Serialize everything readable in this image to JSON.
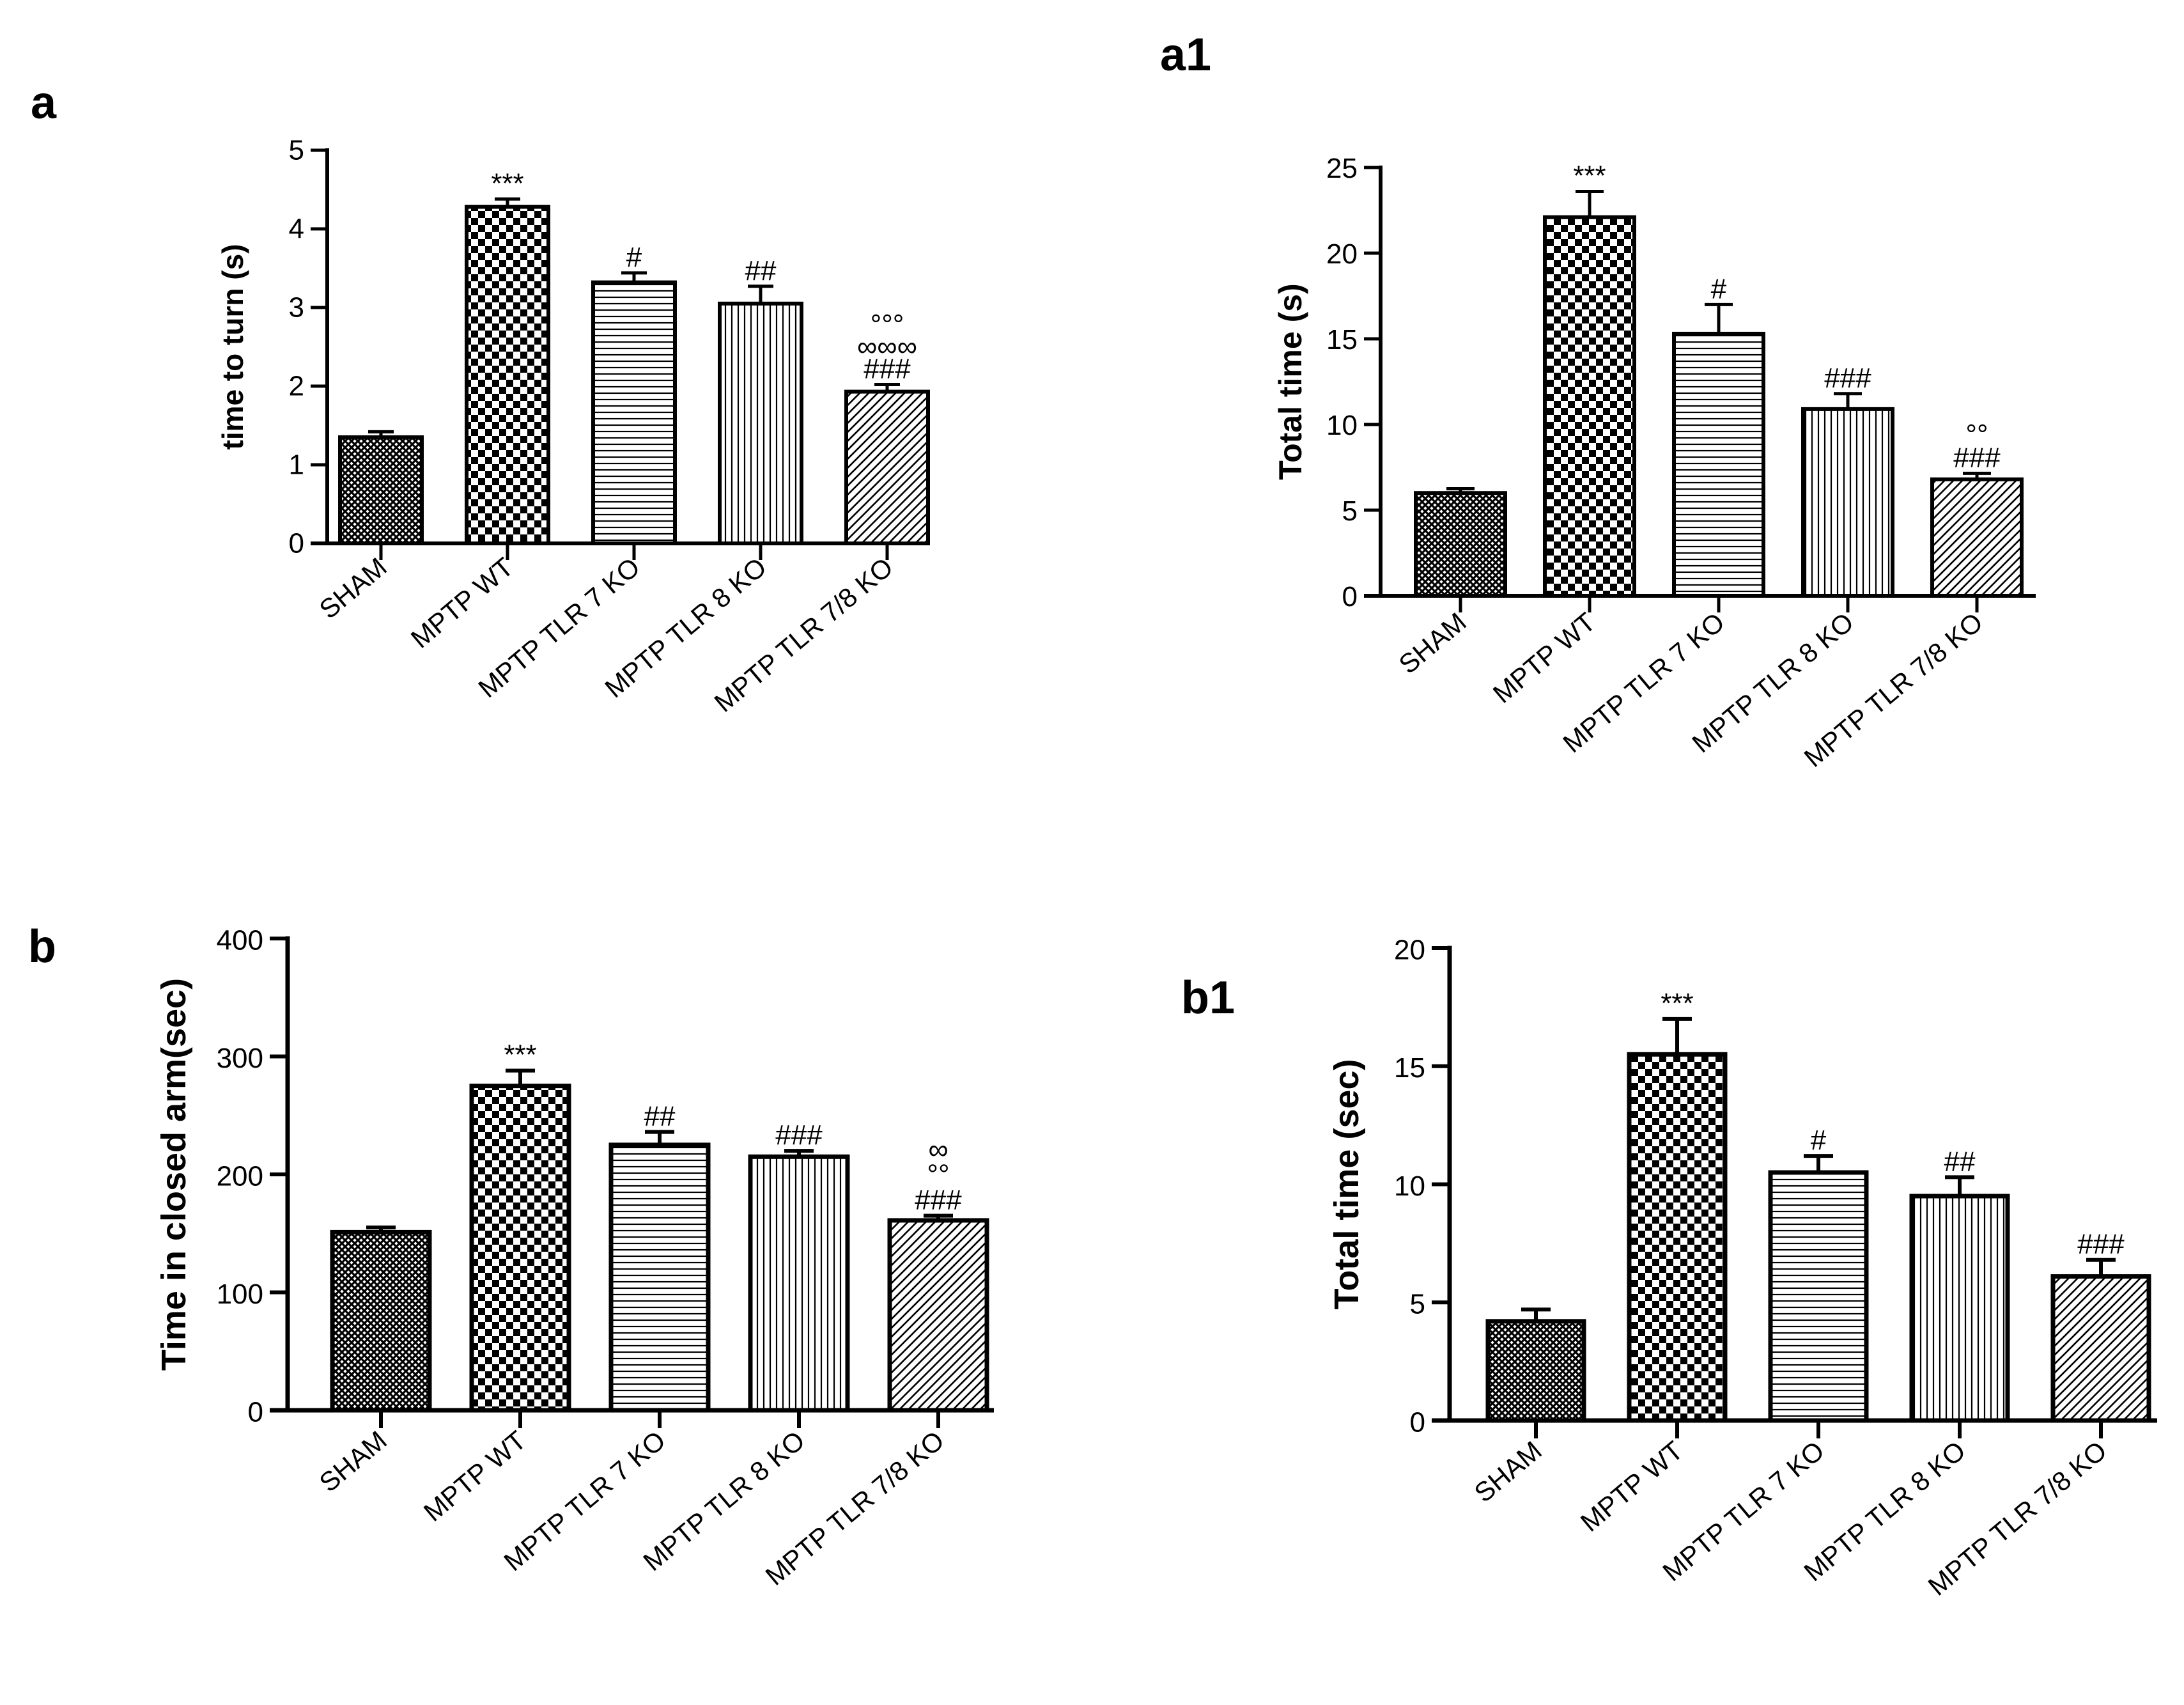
{
  "chart_data": [
    {
      "id": "a",
      "panel_label": "a",
      "type": "bar",
      "title": "",
      "xlabel": "",
      "ylabel": "time to turn (s)",
      "ylim": [
        0,
        5
      ],
      "yticks": [
        0,
        1,
        2,
        3,
        4,
        5
      ],
      "categories": [
        "SHAM",
        "MPTP WT",
        "MPTP TLR 7 KO",
        "MPTP TLR 8 KO",
        "MPTP TLR 7/8  KO"
      ],
      "values": [
        1.35,
        4.28,
        3.32,
        3.05,
        1.93
      ],
      "errors": [
        0.07,
        0.1,
        0.12,
        0.22,
        0.09
      ],
      "patterns": [
        "crosshatch",
        "checker",
        "hlines",
        "vlines",
        "diagonal"
      ],
      "significance": [
        [],
        [
          "***"
        ],
        [
          "#"
        ],
        [
          "##"
        ],
        [
          "°°°",
          "∞∞∞",
          "###"
        ]
      ]
    },
    {
      "id": "a1",
      "panel_label": "a1",
      "type": "bar",
      "title": "",
      "xlabel": "",
      "ylabel": "Total time (s)",
      "ylim": [
        0,
        25
      ],
      "yticks": [
        0,
        5,
        10,
        15,
        20,
        25
      ],
      "categories": [
        "SHAM",
        "MPTP WT",
        "MPTP TLR 7 KO",
        "MPTP TLR 8 KO",
        "MPTP TLR 7/8  KO"
      ],
      "values": [
        6.0,
        22.1,
        15.3,
        10.9,
        6.8
      ],
      "errors": [
        0.25,
        1.5,
        1.7,
        0.9,
        0.35
      ],
      "patterns": [
        "crosshatch",
        "checker",
        "hlines",
        "vlines",
        "diagonal"
      ],
      "significance": [
        [],
        [
          "***"
        ],
        [
          "#"
        ],
        [
          "###"
        ],
        [
          "°°",
          "###"
        ]
      ]
    },
    {
      "id": "b",
      "panel_label": "b",
      "type": "bar",
      "title": "",
      "xlabel": "",
      "ylabel": "Time in closed arm(sec)",
      "ylim": [
        0,
        400
      ],
      "yticks": [
        0,
        100,
        200,
        300,
        400
      ],
      "categories": [
        "SHAM",
        "MPTP WT",
        "MPTP TLR 7 KO",
        "MPTP TLR 8 KO",
        "MPTP TLR 7/8 KO"
      ],
      "values": [
        151,
        275,
        225,
        215,
        161
      ],
      "errors": [
        4,
        13,
        11,
        5,
        4
      ],
      "patterns": [
        "crosshatch",
        "checker",
        "hlines",
        "vlines",
        "diagonal"
      ],
      "significance": [
        [],
        [
          "***"
        ],
        [
          "##"
        ],
        [
          "###"
        ],
        [
          "∞",
          "°°",
          "###"
        ]
      ]
    },
    {
      "id": "b1",
      "panel_label": "b1",
      "type": "bar",
      "title": "",
      "xlabel": "",
      "ylabel": "Total time (sec)",
      "ylim": [
        0,
        20
      ],
      "yticks": [
        0,
        5,
        10,
        15,
        20
      ],
      "categories": [
        "SHAM",
        "MPTP WT",
        "MPTP TLR 7 KO",
        "MPTP TLR 8 KO",
        "MPTP TLR 7/8 KO"
      ],
      "values": [
        4.2,
        15.5,
        10.5,
        9.5,
        6.1
      ],
      "errors": [
        0.5,
        1.5,
        0.7,
        0.8,
        0.7
      ],
      "patterns": [
        "crosshatch",
        "checker",
        "hlines",
        "vlines",
        "diagonal"
      ],
      "significance": [
        [],
        [
          "***"
        ],
        [
          "#"
        ],
        [
          "##"
        ],
        [
          "###"
        ]
      ]
    }
  ]
}
